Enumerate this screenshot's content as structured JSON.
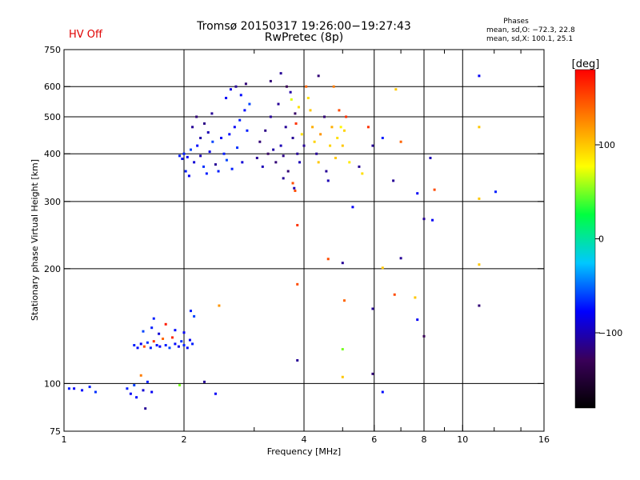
{
  "header": {
    "title_line1": "Tromsø 20150317 19:26:00−19:27:43",
    "title_line2": "RwPretec (8p)",
    "hv_status": "HV Off",
    "hv_color": "#e00000",
    "phases_title": "Phases",
    "phases_o": "mean, sd,O: −72.3, 22.8",
    "phases_x": "mean, sd,X: 100.1, 25.1"
  },
  "colorbar": {
    "label": "[deg]",
    "ticks": [
      {
        "value": 100,
        "label": "100"
      },
      {
        "value": 0,
        "label": "0"
      },
      {
        "value": -100,
        "label": "−100"
      }
    ],
    "range": [
      -180,
      180
    ],
    "colors": [
      "#000000",
      "#3a005a",
      "#0000ff",
      "#00c8ff",
      "#00ff40",
      "#ffff00",
      "#ff8000",
      "#ff0000"
    ]
  },
  "chart_data": {
    "type": "scatter",
    "title": "Tromsø 20150317 19:26:00−19:27:43",
    "subtitle": "RwPretec (8p)",
    "xlabel": "Frequency [MHz]",
    "ylabel": "Stationary phase Virtual Height [km]",
    "xscale": "log",
    "yscale": "log",
    "xlim": [
      1,
      16
    ],
    "ylim": [
      75,
      750
    ],
    "x_ticks": [
      {
        "value": 1,
        "label": "1"
      },
      {
        "value": 2,
        "label": "2"
      },
      {
        "value": 4,
        "label": "4"
      },
      {
        "value": 6,
        "label": "6"
      },
      {
        "value": 8,
        "label": "8"
      },
      {
        "value": 10,
        "label": "10"
      },
      {
        "value": 16,
        "label": "16"
      }
    ],
    "x_grid": [
      2,
      4,
      6,
      8,
      10
    ],
    "x_minor": [
      3,
      5,
      7,
      9,
      12,
      14
    ],
    "y_ticks": [
      {
        "value": 75,
        "label": "75"
      },
      {
        "value": 100,
        "label": "100"
      },
      {
        "value": 200,
        "label": "200"
      },
      {
        "value": 300,
        "label": "300"
      },
      {
        "value": 400,
        "label": "400"
      },
      {
        "value": 500,
        "label": "500"
      },
      {
        "value": 600,
        "label": "600"
      },
      {
        "value": 750,
        "label": "750"
      }
    ],
    "y_grid": [
      100,
      200,
      300,
      400,
      500,
      600
    ],
    "points": [
      {
        "f": 1.03,
        "h": 97,
        "p": -70
      },
      {
        "f": 1.06,
        "h": 97,
        "p": -80
      },
      {
        "f": 1.11,
        "h": 96,
        "p": -75
      },
      {
        "f": 1.16,
        "h": 98,
        "p": -70
      },
      {
        "f": 1.2,
        "h": 95,
        "p": -65
      },
      {
        "f": 1.44,
        "h": 97,
        "p": -70
      },
      {
        "f": 1.47,
        "h": 94,
        "p": -80
      },
      {
        "f": 1.5,
        "h": 99,
        "p": -60
      },
      {
        "f": 1.52,
        "h": 92,
        "p": -75
      },
      {
        "f": 1.56,
        "h": 105,
        "p": 130
      },
      {
        "f": 1.58,
        "h": 96,
        "p": -90
      },
      {
        "f": 1.6,
        "h": 86,
        "p": -110
      },
      {
        "f": 1.62,
        "h": 101,
        "p": -70
      },
      {
        "f": 1.66,
        "h": 95,
        "p": -80
      },
      {
        "f": 1.95,
        "h": 99,
        "p": 50
      },
      {
        "f": 2.25,
        "h": 101,
        "p": -110
      },
      {
        "f": 2.4,
        "h": 94,
        "p": -80
      },
      {
        "f": 1.5,
        "h": 126,
        "p": -70
      },
      {
        "f": 1.53,
        "h": 124,
        "p": -75
      },
      {
        "f": 1.56,
        "h": 127,
        "p": -80
      },
      {
        "f": 1.59,
        "h": 125,
        "p": 150
      },
      {
        "f": 1.62,
        "h": 128,
        "p": -65
      },
      {
        "f": 1.65,
        "h": 124,
        "p": -70
      },
      {
        "f": 1.68,
        "h": 129,
        "p": 160
      },
      {
        "f": 1.71,
        "h": 126,
        "p": -75
      },
      {
        "f": 1.74,
        "h": 125,
        "p": -80
      },
      {
        "f": 1.77,
        "h": 131,
        "p": 140
      },
      {
        "f": 1.8,
        "h": 126,
        "p": -70
      },
      {
        "f": 1.84,
        "h": 124,
        "p": -60
      },
      {
        "f": 1.87,
        "h": 132,
        "p": 165
      },
      {
        "f": 1.9,
        "h": 127,
        "p": -75
      },
      {
        "f": 1.94,
        "h": 125,
        "p": -85
      },
      {
        "f": 1.97,
        "h": 129,
        "p": -65
      },
      {
        "f": 2.0,
        "h": 126,
        "p": -70
      },
      {
        "f": 2.04,
        "h": 124,
        "p": -75
      },
      {
        "f": 2.07,
        "h": 130,
        "p": -80
      },
      {
        "f": 2.1,
        "h": 127,
        "p": -70
      },
      {
        "f": 1.58,
        "h": 137,
        "p": -60
      },
      {
        "f": 1.66,
        "h": 140,
        "p": -70
      },
      {
        "f": 1.73,
        "h": 135,
        "p": -90
      },
      {
        "f": 1.8,
        "h": 143,
        "p": 170
      },
      {
        "f": 1.9,
        "h": 138,
        "p": -75
      },
      {
        "f": 2.0,
        "h": 136,
        "p": -80
      },
      {
        "f": 2.08,
        "h": 155,
        "p": -70
      },
      {
        "f": 2.12,
        "h": 150,
        "p": -60
      },
      {
        "f": 2.45,
        "h": 160,
        "p": 120
      },
      {
        "f": 1.68,
        "h": 148,
        "p": -70
      },
      {
        "f": 2.0,
        "h": 400,
        "p": -70
      },
      {
        "f": 2.04,
        "h": 392,
        "p": -80
      },
      {
        "f": 2.08,
        "h": 410,
        "p": -60
      },
      {
        "f": 2.12,
        "h": 380,
        "p": -90
      },
      {
        "f": 2.16,
        "h": 420,
        "p": -75
      },
      {
        "f": 2.2,
        "h": 395,
        "p": -100
      },
      {
        "f": 2.24,
        "h": 370,
        "p": -65
      },
      {
        "f": 2.28,
        "h": 355,
        "p": -70
      },
      {
        "f": 2.32,
        "h": 405,
        "p": -85
      },
      {
        "f": 2.36,
        "h": 430,
        "p": -60
      },
      {
        "f": 2.4,
        "h": 375,
        "p": -110
      },
      {
        "f": 2.44,
        "h": 360,
        "p": -70
      },
      {
        "f": 2.48,
        "h": 440,
        "p": -80
      },
      {
        "f": 2.52,
        "h": 400,
        "p": -70
      },
      {
        "f": 2.56,
        "h": 385,
        "p": -60
      },
      {
        "f": 2.6,
        "h": 450,
        "p": -75
      },
      {
        "f": 2.64,
        "h": 365,
        "p": -70
      },
      {
        "f": 2.68,
        "h": 470,
        "p": -80
      },
      {
        "f": 2.72,
        "h": 415,
        "p": -65
      },
      {
        "f": 2.76,
        "h": 490,
        "p": -70
      },
      {
        "f": 2.8,
        "h": 380,
        "p": -90
      },
      {
        "f": 2.84,
        "h": 520,
        "p": -75
      },
      {
        "f": 2.88,
        "h": 460,
        "p": -70
      },
      {
        "f": 2.92,
        "h": 540,
        "p": -60
      },
      {
        "f": 2.1,
        "h": 470,
        "p": -110
      },
      {
        "f": 2.15,
        "h": 500,
        "p": -120
      },
      {
        "f": 2.2,
        "h": 440,
        "p": -105
      },
      {
        "f": 2.25,
        "h": 480,
        "p": -115
      },
      {
        "f": 2.3,
        "h": 455,
        "p": -100
      },
      {
        "f": 2.35,
        "h": 510,
        "p": -110
      },
      {
        "f": 2.55,
        "h": 560,
        "p": -80
      },
      {
        "f": 2.62,
        "h": 590,
        "p": -85
      },
      {
        "f": 2.7,
        "h": 600,
        "p": -110
      },
      {
        "f": 2.78,
        "h": 570,
        "p": -75
      },
      {
        "f": 2.86,
        "h": 610,
        "p": -120
      },
      {
        "f": 1.95,
        "h": 395,
        "p": -70
      },
      {
        "f": 1.98,
        "h": 388,
        "p": -75
      },
      {
        "f": 2.02,
        "h": 360,
        "p": -70
      },
      {
        "f": 2.06,
        "h": 350,
        "p": -80
      },
      {
        "f": 3.05,
        "h": 390,
        "p": -110
      },
      {
        "f": 3.1,
        "h": 430,
        "p": -120
      },
      {
        "f": 3.15,
        "h": 370,
        "p": -100
      },
      {
        "f": 3.2,
        "h": 460,
        "p": -115
      },
      {
        "f": 3.25,
        "h": 400,
        "p": -125
      },
      {
        "f": 3.3,
        "h": 500,
        "p": -110
      },
      {
        "f": 3.35,
        "h": 410,
        "p": -105
      },
      {
        "f": 3.4,
        "h": 380,
        "p": -120
      },
      {
        "f": 3.45,
        "h": 540,
        "p": -110
      },
      {
        "f": 3.5,
        "h": 420,
        "p": -100
      },
      {
        "f": 3.55,
        "h": 395,
        "p": -115
      },
      {
        "f": 3.6,
        "h": 470,
        "p": -110
      },
      {
        "f": 3.65,
        "h": 360,
        "p": -120
      },
      {
        "f": 3.7,
        "h": 580,
        "p": -105
      },
      {
        "f": 3.75,
        "h": 440,
        "p": -110
      },
      {
        "f": 3.8,
        "h": 510,
        "p": -125
      },
      {
        "f": 3.85,
        "h": 400,
        "p": -110
      },
      {
        "f": 3.9,
        "h": 380,
        "p": -100
      },
      {
        "f": 3.95,
        "h": 450,
        "p": 90
      },
      {
        "f": 4.0,
        "h": 420,
        "p": -110
      },
      {
        "f": 3.3,
        "h": 620,
        "p": -120
      },
      {
        "f": 3.5,
        "h": 650,
        "p": -110
      },
      {
        "f": 3.62,
        "h": 600,
        "p": -130
      },
      {
        "f": 3.72,
        "h": 555,
        "p": 70
      },
      {
        "f": 3.82,
        "h": 480,
        "p": 160
      },
      {
        "f": 3.88,
        "h": 530,
        "p": 90
      },
      {
        "f": 3.55,
        "h": 345,
        "p": -110
      },
      {
        "f": 3.75,
        "h": 335,
        "p": 150
      },
      {
        "f": 3.78,
        "h": 325,
        "p": -100
      },
      {
        "f": 4.05,
        "h": 600,
        "p": 140
      },
      {
        "f": 4.1,
        "h": 560,
        "p": 90
      },
      {
        "f": 4.15,
        "h": 520,
        "p": 100
      },
      {
        "f": 4.2,
        "h": 470,
        "p": 110
      },
      {
        "f": 4.25,
        "h": 430,
        "p": 95
      },
      {
        "f": 4.3,
        "h": 400,
        "p": -110
      },
      {
        "f": 4.35,
        "h": 380,
        "p": 100
      },
      {
        "f": 4.4,
        "h": 450,
        "p": 120
      },
      {
        "f": 4.5,
        "h": 500,
        "p": -120
      },
      {
        "f": 4.55,
        "h": 360,
        "p": -110
      },
      {
        "f": 4.6,
        "h": 340,
        "p": -100
      },
      {
        "f": 4.65,
        "h": 420,
        "p": 95
      },
      {
        "f": 4.7,
        "h": 470,
        "p": 110
      },
      {
        "f": 4.75,
        "h": 600,
        "p": 130
      },
      {
        "f": 4.8,
        "h": 390,
        "p": 100
      },
      {
        "f": 4.85,
        "h": 440,
        "p": 90
      },
      {
        "f": 4.9,
        "h": 520,
        "p": 150
      },
      {
        "f": 4.95,
        "h": 470,
        "p": 80
      },
      {
        "f": 5.0,
        "h": 420,
        "p": 100
      },
      {
        "f": 5.05,
        "h": 460,
        "p": 95
      },
      {
        "f": 5.1,
        "h": 500,
        "p": 160
      },
      {
        "f": 5.2,
        "h": 380,
        "p": 85
      },
      {
        "f": 4.35,
        "h": 640,
        "p": -120
      },
      {
        "f": 5.5,
        "h": 370,
        "p": -110
      },
      {
        "f": 5.6,
        "h": 355,
        "p": 90
      },
      {
        "f": 5.8,
        "h": 470,
        "p": 160
      },
      {
        "f": 5.95,
        "h": 420,
        "p": -110
      },
      {
        "f": 5.3,
        "h": 290,
        "p": -80
      },
      {
        "f": 6.3,
        "h": 440,
        "p": -70
      },
      {
        "f": 6.7,
        "h": 340,
        "p": -110
      },
      {
        "f": 6.8,
        "h": 590,
        "p": 100
      },
      {
        "f": 7.0,
        "h": 430,
        "p": 140
      },
      {
        "f": 7.7,
        "h": 315,
        "p": -80
      },
      {
        "f": 8.0,
        "h": 270,
        "p": -110
      },
      {
        "f": 8.3,
        "h": 390,
        "p": -100
      },
      {
        "f": 8.4,
        "h": 268,
        "p": -80
      },
      {
        "f": 8.5,
        "h": 322,
        "p": 150
      },
      {
        "f": 11.0,
        "h": 640,
        "p": -80
      },
      {
        "f": 11.0,
        "h": 470,
        "p": 100
      },
      {
        "f": 11.0,
        "h": 305,
        "p": 100
      },
      {
        "f": 11.0,
        "h": 205,
        "p": 100
      },
      {
        "f": 11.0,
        "h": 160,
        "p": -120
      },
      {
        "f": 12.1,
        "h": 318,
        "p": -70
      },
      {
        "f": 3.85,
        "h": 260,
        "p": 160
      },
      {
        "f": 3.85,
        "h": 182,
        "p": 150
      },
      {
        "f": 3.85,
        "h": 115,
        "p": -110
      },
      {
        "f": 4.6,
        "h": 212,
        "p": 150
      },
      {
        "f": 5.0,
        "h": 207,
        "p": -110
      },
      {
        "f": 5.05,
        "h": 165,
        "p": 140
      },
      {
        "f": 5.0,
        "h": 123,
        "p": 50
      },
      {
        "f": 5.0,
        "h": 104,
        "p": 100
      },
      {
        "f": 5.95,
        "h": 157,
        "p": -110
      },
      {
        "f": 5.95,
        "h": 106,
        "p": -120
      },
      {
        "f": 6.3,
        "h": 201,
        "p": 100
      },
      {
        "f": 6.75,
        "h": 171,
        "p": 150
      },
      {
        "f": 7.0,
        "h": 213,
        "p": -110
      },
      {
        "f": 7.6,
        "h": 168,
        "p": 100
      },
      {
        "f": 7.7,
        "h": 147,
        "p": -80
      },
      {
        "f": 8.0,
        "h": 133,
        "p": -130
      },
      {
        "f": 6.3,
        "h": 95,
        "p": -75
      },
      {
        "f": 3.8,
        "h": 320,
        "p": 150
      }
    ]
  }
}
